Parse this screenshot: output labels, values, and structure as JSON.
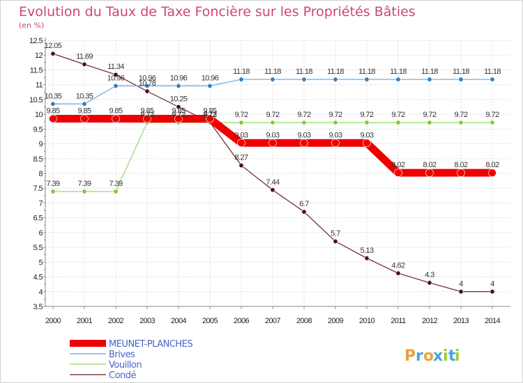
{
  "chart_data": {
    "type": "line",
    "title": "Evolution du Taux de Taxe Foncière sur les Propriétés Bâties",
    "subtitle": "(en %)",
    "categories": [
      "2000",
      "2001",
      "2002",
      "2003",
      "2004",
      "2005",
      "2006",
      "2007",
      "2008",
      "2009",
      "2010",
      "2011",
      "2012",
      "2013",
      "2014"
    ],
    "ylim": [
      3.5,
      12.5
    ],
    "yticks": [
      "3.5",
      "4",
      "4.5",
      "5",
      "5.5",
      "6",
      "6.5",
      "7",
      "7.5",
      "8",
      "8.5",
      "9",
      "9.5",
      "10",
      "10.5",
      "11",
      "11.5",
      "12",
      "12.5"
    ],
    "grid": true,
    "series": [
      {
        "name": "Condé",
        "color": "#6b1f23",
        "values": [
          12.05,
          11.69,
          11.34,
          10.78,
          10.25,
          9.73,
          8.27,
          7.44,
          6.7,
          5.7,
          5.13,
          4.62,
          4.3,
          4,
          4
        ],
        "labels": [
          "12.05",
          "11.69",
          "11.34",
          "10.78",
          "10.25",
          "9.73",
          "8.27",
          "7.44",
          "6.7",
          "5.7",
          "5.13",
          "4.62",
          "4.3",
          "4",
          "4"
        ]
      },
      {
        "name": "Brives",
        "color": "#5b9bd5",
        "values": [
          10.35,
          10.35,
          10.96,
          10.96,
          10.96,
          10.96,
          11.18,
          11.18,
          11.18,
          11.18,
          11.18,
          11.18,
          11.18,
          11.18,
          11.18
        ],
        "labels": [
          "10.35",
          "10.35",
          "10.96",
          "10.96",
          "10.96",
          "10.96",
          "11.18",
          "11.18",
          "11.18",
          "11.18",
          "11.18",
          "11.18",
          "11.18",
          "11.18",
          "11.18"
        ]
      },
      {
        "name": "Vouillon",
        "color": "#8fd14f",
        "values": [
          7.39,
          7.39,
          7.39,
          9.72,
          9.72,
          9.72,
          9.72,
          9.72,
          9.72,
          9.72,
          9.72,
          9.72,
          9.72,
          9.72,
          9.72
        ],
        "labels": [
          "7.39",
          "7.39",
          "7.39",
          "9.72",
          "9.72",
          "9.72",
          "9.72",
          "9.72",
          "9.72",
          "9.72",
          "9.72",
          "9.72",
          "9.72",
          "9.72",
          "9.72"
        ]
      },
      {
        "name": "MEUNET-PLANCHES",
        "color": "#ee0000",
        "values": [
          9.85,
          9.85,
          9.85,
          9.85,
          9.85,
          9.85,
          9.03,
          9.03,
          9.03,
          9.03,
          9.03,
          8.02,
          8.02,
          8.02,
          8.02
        ],
        "labels": [
          "9.85",
          "9.85",
          "9.85",
          "9.85",
          "9.85",
          "9.85",
          "9.03",
          "9.03",
          "9.03",
          "9.03",
          "9.03",
          "8.02",
          "8.02",
          "8.02",
          "8.02"
        ]
      }
    ],
    "legend": [
      "MEUNET-PLANCHES",
      "Brives",
      "Vouillon",
      "Condé"
    ],
    "legend_position": "bottom-left"
  },
  "logo": {
    "letters": [
      "P",
      "r",
      "o",
      "x",
      "i",
      "t",
      "i"
    ],
    "colors": [
      "#e8a33d",
      "#4aa3df",
      "#e8a33d",
      "#4aa3df",
      "#9ccc3c",
      "#4aa3df",
      "#9ccc3c"
    ]
  }
}
